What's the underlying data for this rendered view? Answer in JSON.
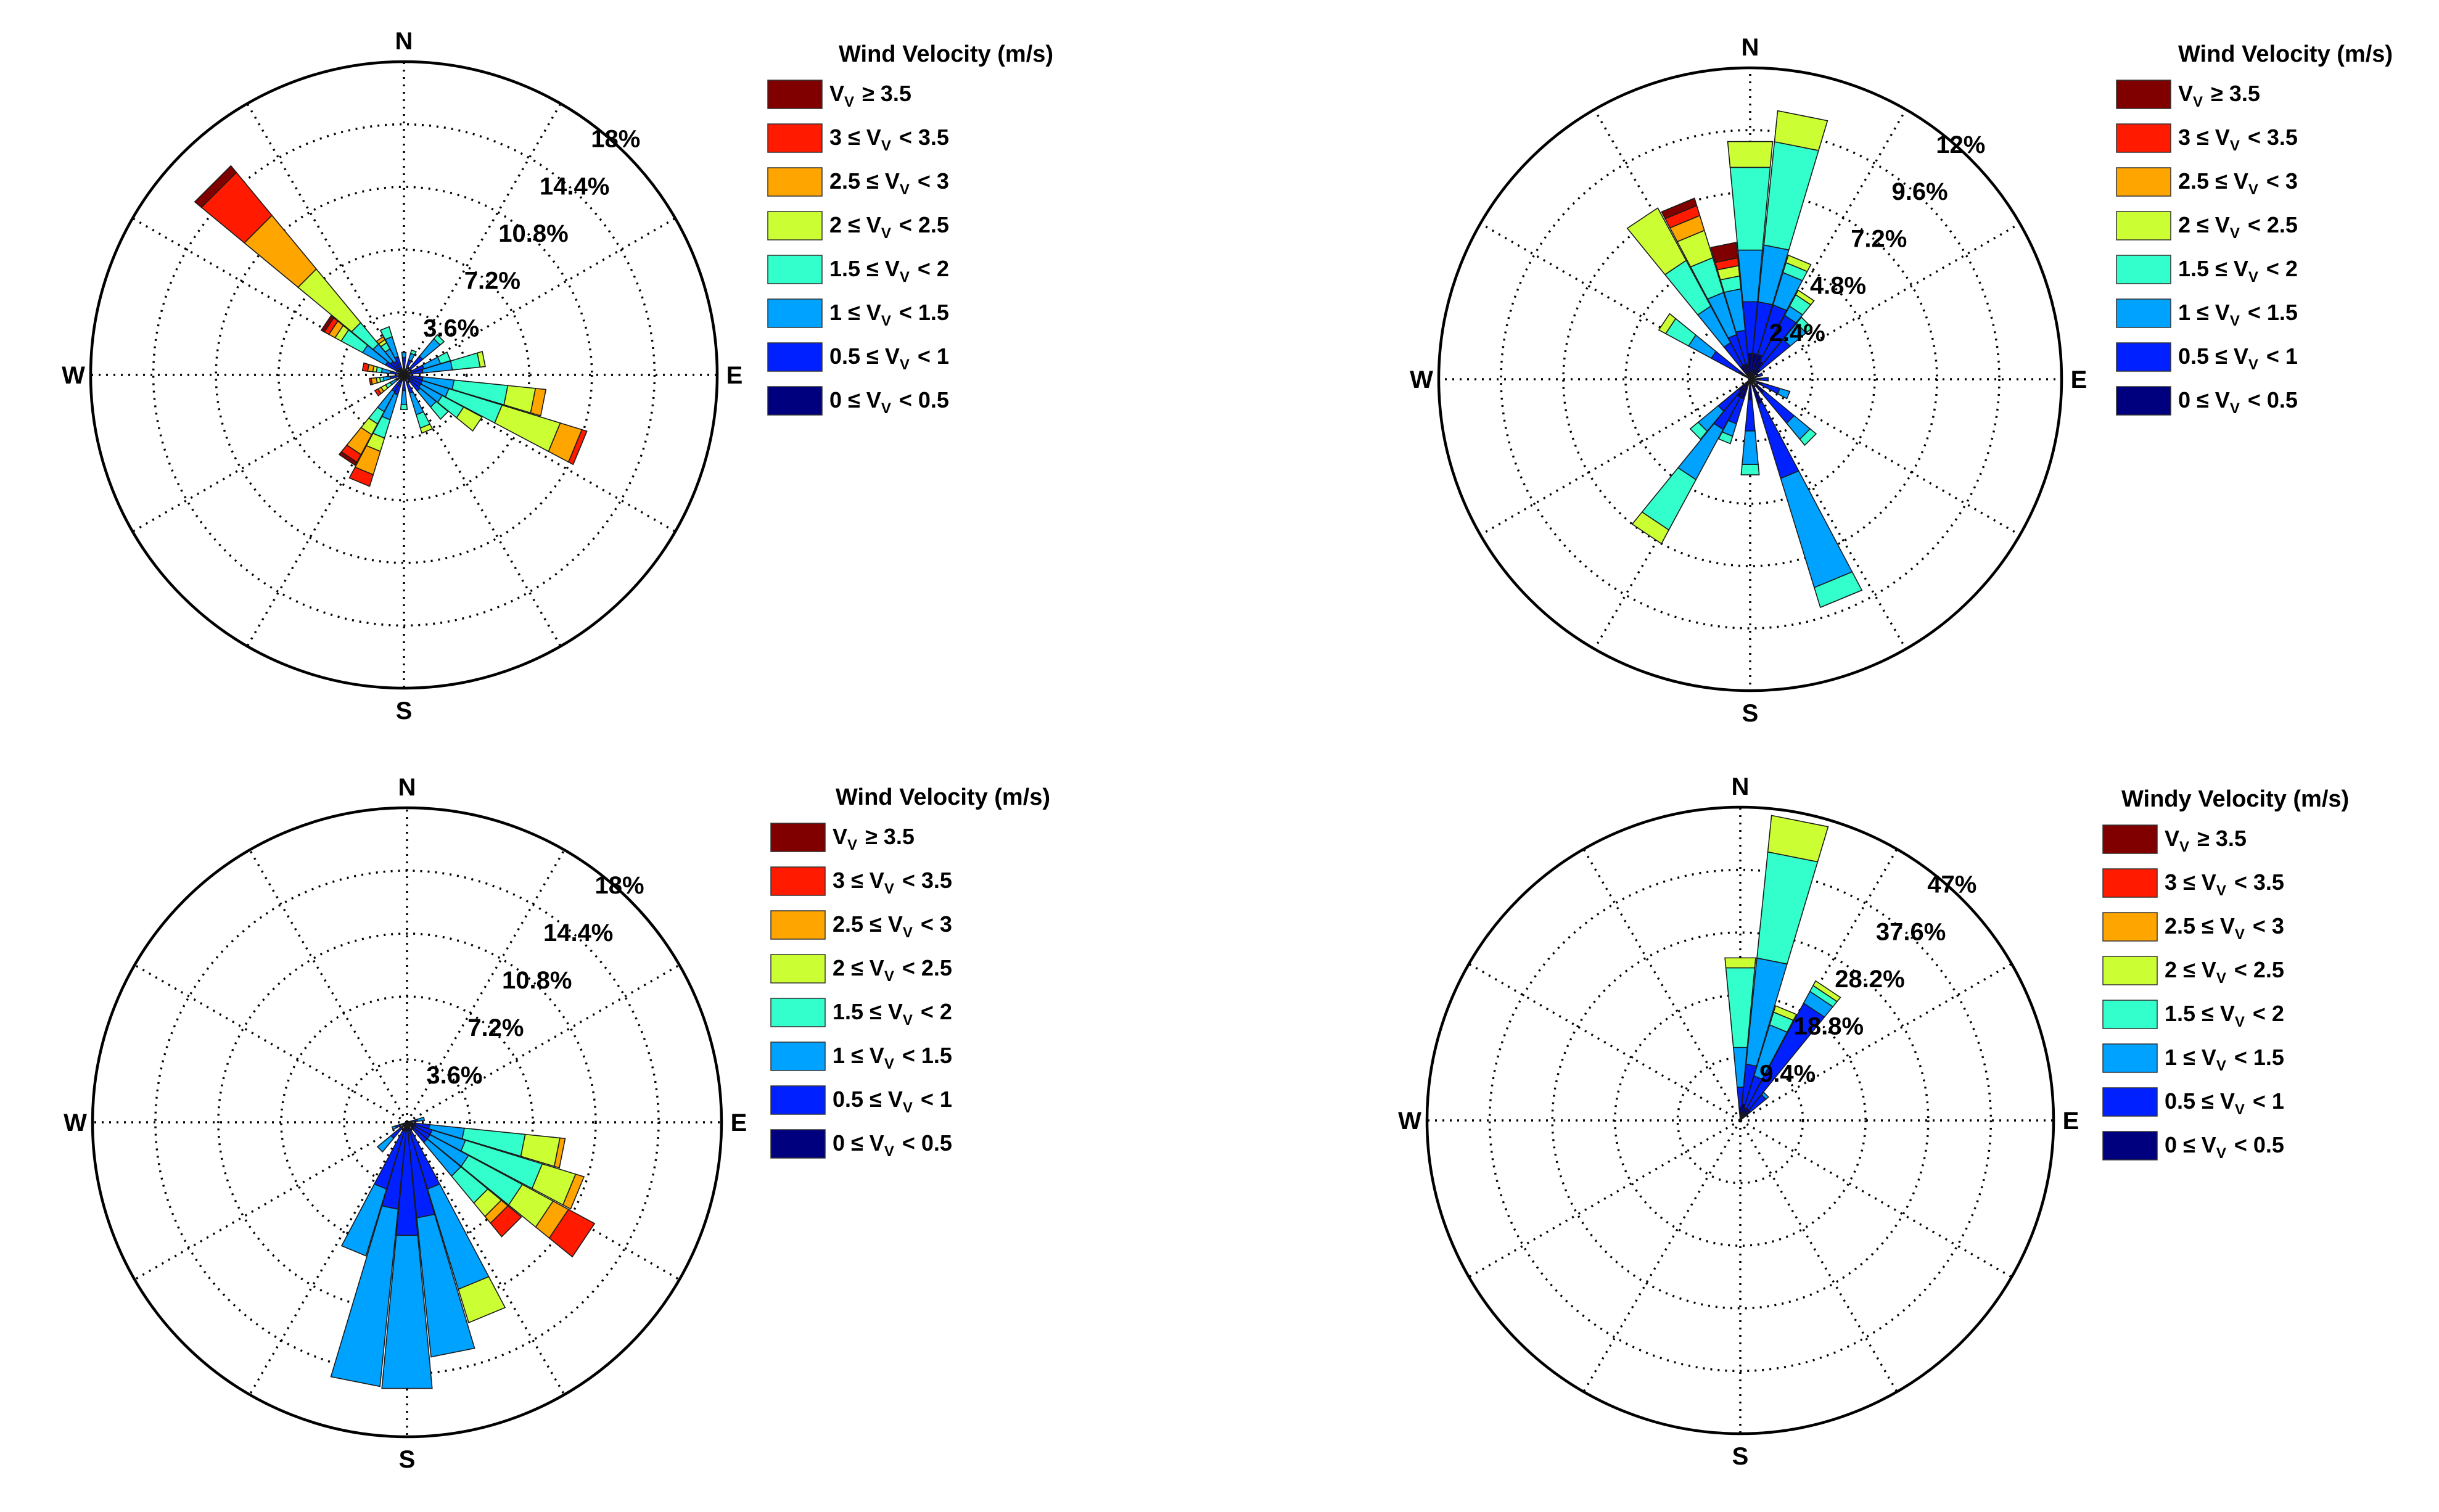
{
  "chart_data": [
    {
      "type": "windrose",
      "title": "",
      "legend_title": "Wind Velocity (m/s)",
      "legend_location": "right",
      "direction_labels": [
        "N",
        "E",
        "S",
        "W"
      ],
      "radial_axis": {
        "max": 18,
        "ticks": [
          3.6,
          7.2,
          10.8,
          14.4,
          18
        ],
        "tick_labels": [
          "3.6%",
          "7.2%",
          "10.8%",
          "14.4%",
          "18%"
        ]
      },
      "speed_bins": [
        {
          "name": "0 ≤ Vv < 0.5",
          "color": "#00007f"
        },
        {
          "name": "0.5 ≤ Vv < 1",
          "color": "#0020ff"
        },
        {
          "name": "1 ≤ Vv < 1.5",
          "color": "#00a2ff"
        },
        {
          "name": "1.5 ≤ Vv < 2",
          "color": "#33ffcc"
        },
        {
          "name": "2 ≤ Vv < 2.5",
          "color": "#ccff33"
        },
        {
          "name": "2.5 ≤ Vv < 3",
          "color": "#ffa500"
        },
        {
          "name": "3 ≤ Vv < 3.5",
          "color": "#ff1a00"
        },
        {
          "name": "Vv ≥ 3.5",
          "color": "#800000"
        }
      ],
      "sectors": [
        {
          "direction": 0,
          "values": [
            0.5,
            0.5,
            0.3,
            0,
            0,
            0,
            0,
            0
          ]
        },
        {
          "direction": 22.5,
          "values": [
            0.4,
            0.5,
            0.4,
            0.2,
            0,
            0,
            0,
            0
          ]
        },
        {
          "direction": 45,
          "values": [
            0.4,
            1.0,
            1.3,
            0.3,
            0,
            0,
            0,
            0
          ]
        },
        {
          "direction": 67.5,
          "values": [
            0.4,
            0.8,
            1.0,
            0.6,
            0,
            0,
            0,
            0
          ]
        },
        {
          "direction": 78.75,
          "values": [
            0.3,
            0.8,
            1.7,
            1.6,
            0.3,
            0,
            0,
            0
          ]
        },
        {
          "direction": 101.25,
          "values": [
            0.3,
            0.8,
            1.8,
            3.1,
            1.6,
            0.6,
            0,
            0
          ]
        },
        {
          "direction": 112.5,
          "values": [
            0.3,
            0.8,
            1.6,
            3.2,
            3.5,
            1.3,
            0.3,
            0
          ]
        },
        {
          "direction": 123.75,
          "values": [
            0.3,
            0.8,
            1.4,
            1.4,
            1.2,
            0,
            0,
            0
          ]
        },
        {
          "direction": 135,
          "values": [
            0.4,
            0.8,
            1.2,
            0.9,
            0,
            0,
            0,
            0
          ]
        },
        {
          "direction": 157.5,
          "values": [
            0.3,
            0.8,
            1.3,
            0.8,
            0.3,
            0,
            0,
            0
          ]
        },
        {
          "direction": 180,
          "values": [
            0.3,
            0.6,
            0.8,
            0.3,
            0,
            0,
            0,
            0
          ]
        },
        {
          "direction": 202.5,
          "values": [
            0.4,
            0.8,
            1.5,
            1.1,
            0.8,
            1.4,
            0.7,
            0
          ]
        },
        {
          "direction": 213.75,
          "values": [
            0.3,
            0.8,
            1.3,
            0.8,
            0.7,
            1.3,
            0.5,
            0.2
          ]
        },
        {
          "direction": 236.25,
          "values": [
            0.2,
            0.3,
            0.4,
            0.3,
            0.3,
            0.2,
            0.2,
            0
          ]
        },
        {
          "direction": 258.75,
          "values": [
            0.3,
            0.5,
            0.4,
            0.2,
            0.2,
            0.3,
            0.1,
            0
          ]
        },
        {
          "direction": 281.25,
          "values": [
            0.3,
            0.5,
            0.5,
            0.3,
            0.2,
            0.3,
            0.3,
            0
          ]
        },
        {
          "direction": 303.75,
          "values": [
            0.4,
            0.8,
            1.5,
            1.4,
            0.4,
            0.4,
            0.3,
            0.2
          ]
        },
        {
          "direction": 315,
          "values": [
            0.3,
            0.7,
            1.3,
            1.6,
            4.0,
            4.0,
            3.2,
            0.5
          ]
        },
        {
          "direction": 326.25,
          "values": [
            0.3,
            0.6,
            0.8,
            0.4,
            0.2,
            0.2,
            0,
            0
          ]
        },
        {
          "direction": 337.5,
          "values": [
            0.4,
            0.7,
            1.2,
            0.6,
            0,
            0,
            0,
            0
          ]
        }
      ]
    },
    {
      "type": "windrose",
      "title": "",
      "legend_title": "Wind Velocity (m/s)",
      "legend_location": "right",
      "direction_labels": [
        "N",
        "E",
        "S",
        "W"
      ],
      "radial_axis": {
        "max": 12,
        "ticks": [
          2.4,
          4.8,
          7.2,
          9.6,
          12
        ],
        "tick_labels": [
          "2.4%",
          "4.8%",
          "7.2%",
          "9.6%",
          "12%"
        ]
      },
      "speed_bins": [
        {
          "name": "0 ≤ Vv < 0.5",
          "color": "#00007f"
        },
        {
          "name": "0.5 ≤ Vv < 1",
          "color": "#0020ff"
        },
        {
          "name": "1 ≤ Vv < 1.5",
          "color": "#00a2ff"
        },
        {
          "name": "1.5 ≤ Vv < 2",
          "color": "#33ffcc"
        },
        {
          "name": "2 ≤ Vv < 2.5",
          "color": "#ccff33"
        },
        {
          "name": "2.5 ≤ Vv < 3",
          "color": "#ffa500"
        },
        {
          "name": "3 ≤ Vv < 3.5",
          "color": "#ff1a00"
        },
        {
          "name": "Vv ≥ 3.5",
          "color": "#800000"
        }
      ],
      "sectors": [
        {
          "direction": 0,
          "values": [
            1.0,
            2.0,
            2.0,
            3.2,
            1.0,
            0,
            0,
            0
          ]
        },
        {
          "direction": 11.25,
          "values": [
            1.0,
            2.0,
            2.2,
            4.0,
            1.2,
            0,
            0,
            0
          ]
        },
        {
          "direction": 22.5,
          "values": [
            1.0,
            2.0,
            1.3,
            0.4,
            0.3,
            0,
            0,
            0
          ]
        },
        {
          "direction": 33.75,
          "values": [
            0.8,
            2.0,
            0.4,
            0.5,
            0.2,
            0,
            0,
            0
          ]
        },
        {
          "direction": 45,
          "values": [
            0.5,
            1.5,
            0.8,
            0.3,
            0,
            0,
            0,
            0
          ]
        },
        {
          "direction": 67.5,
          "values": [
            0.3,
            0.2,
            0,
            0,
            0,
            0,
            0,
            0
          ]
        },
        {
          "direction": 90,
          "values": [
            0.4,
            0.3,
            0,
            0,
            0,
            0,
            0,
            0
          ]
        },
        {
          "direction": 112.5,
          "values": [
            0.5,
            0.7,
            0.4,
            0,
            0,
            0,
            0,
            0
          ]
        },
        {
          "direction": 135,
          "values": [
            0.7,
            1.5,
            0.8,
            0.3,
            0,
            0,
            0,
            0
          ]
        },
        {
          "direction": 157.5,
          "values": [
            1.0,
            3.0,
            4.4,
            0.8,
            0,
            0,
            0,
            0
          ]
        },
        {
          "direction": 180,
          "values": [
            0.8,
            1.2,
            1.3,
            0.4,
            0,
            0,
            0,
            0
          ]
        },
        {
          "direction": 202.5,
          "values": [
            0.8,
            1.0,
            0.5,
            0.3,
            0,
            0,
            0,
            0
          ]
        },
        {
          "direction": 213.75,
          "values": [
            0.8,
            1.4,
            2.2,
            2.2,
            0.6,
            0,
            0,
            0
          ]
        },
        {
          "direction": 225,
          "values": [
            0.6,
            1.0,
            1.0,
            0.4,
            0,
            0,
            0,
            0
          ]
        },
        {
          "direction": 303.75,
          "values": [
            0.5,
            1.2,
            1.0,
            1.0,
            0.3,
            0,
            0,
            0
          ]
        },
        {
          "direction": 326.25,
          "values": [
            0.6,
            1.0,
            1.6,
            2.0,
            2.3,
            0,
            0,
            0
          ]
        },
        {
          "direction": 337.5,
          "values": [
            0.6,
            1.2,
            1.7,
            1.4,
            1.1,
            0.6,
            0.4,
            0.3
          ]
        },
        {
          "direction": 348.75,
          "values": [
            0.6,
            1.3,
            1.6,
            0.5,
            0.4,
            0,
            0.3,
            0.6
          ]
        }
      ]
    },
    {
      "type": "windrose",
      "title": "",
      "legend_title": "Wind Velocity (m/s)",
      "legend_location": "right",
      "direction_labels": [
        "N",
        "E",
        "S",
        "W"
      ],
      "radial_axis": {
        "max": 18,
        "ticks": [
          3.6,
          7.2,
          10.8,
          14.4,
          18
        ],
        "tick_labels": [
          "3.6%",
          "7.2%",
          "10.8%",
          "14.4%",
          "18%"
        ]
      },
      "speed_bins": [
        {
          "name": "0 ≤ Vv < 0.5",
          "color": "#00007f"
        },
        {
          "name": "0.5 ≤ Vv < 1",
          "color": "#0020ff"
        },
        {
          "name": "1 ≤ Vv < 1.5",
          "color": "#00a2ff"
        },
        {
          "name": "1.5 ≤ Vv < 2",
          "color": "#33ffcc"
        },
        {
          "name": "2 ≤ Vv < 2.5",
          "color": "#ccff33"
        },
        {
          "name": "2.5 ≤ Vv < 3",
          "color": "#ffa500"
        },
        {
          "name": "3 ≤ Vv < 3.5",
          "color": "#ff1a00"
        },
        {
          "name": "Vv ≥ 3.5",
          "color": "#800000"
        }
      ],
      "sectors": [
        {
          "direction": 78.75,
          "values": [
            0.3,
            0.3,
            0.4,
            0,
            0,
            0,
            0,
            0
          ]
        },
        {
          "direction": 101.25,
          "values": [
            0.5,
            0.8,
            2.0,
            3.5,
            2.0,
            0.3,
            0,
            0
          ]
        },
        {
          "direction": 112.5,
          "values": [
            0.5,
            1.0,
            2.0,
            4.6,
            2.0,
            0.5,
            0,
            0
          ]
        },
        {
          "direction": 123.75,
          "values": [
            0.5,
            1.0,
            2.5,
            3.5,
            2.0,
            1.0,
            1.7,
            0
          ]
        },
        {
          "direction": 135,
          "values": [
            0.5,
            1.0,
            2.5,
            2.0,
            1.0,
            0.5,
            1.0,
            0
          ]
        },
        {
          "direction": 157.5,
          "values": [
            0.5,
            3.5,
            6.0,
            0,
            2.0,
            0,
            0,
            0
          ]
        },
        {
          "direction": 168.75,
          "values": [
            0.5,
            5.0,
            8.0,
            0,
            0,
            0,
            0,
            0
          ]
        },
        {
          "direction": 180,
          "values": [
            0.5,
            6.0,
            8.8,
            0,
            0,
            0,
            0,
            0
          ]
        },
        {
          "direction": 191.25,
          "values": [
            0.5,
            4.5,
            10.2,
            0,
            0,
            0,
            0,
            0
          ]
        },
        {
          "direction": 202.5,
          "values": [
            0.5,
            3.5,
            4.0,
            0,
            0,
            0,
            0,
            0
          ]
        },
        {
          "direction": 225,
          "values": [
            0.4,
            0.8,
            1.0,
            0,
            0,
            0,
            0,
            0
          ]
        },
        {
          "direction": 247.5,
          "values": [
            0.3,
            0.4,
            0.2,
            0,
            0,
            0,
            0,
            0
          ]
        }
      ]
    },
    {
      "type": "windrose",
      "title": "",
      "legend_title": "Windy Velocity (m/s)",
      "legend_location": "right",
      "direction_labels": [
        "N",
        "E",
        "S",
        "W"
      ],
      "radial_axis": {
        "max": 47,
        "ticks": [
          9.4,
          18.8,
          28.2,
          37.6,
          47
        ],
        "tick_labels": [
          "9.4%",
          "18.8%",
          "28.2%",
          "37.6%",
          "47%"
        ]
      },
      "speed_bins": [
        {
          "name": "0 ≤ Vv < 0.5",
          "color": "#00007f"
        },
        {
          "name": "0.5 ≤ Vv < 1",
          "color": "#0020ff"
        },
        {
          "name": "1 ≤ Vv < 1.5",
          "color": "#00a2ff"
        },
        {
          "name": "1.5 ≤ Vv < 2",
          "color": "#33ffcc"
        },
        {
          "name": "2 ≤ Vv < 2.5",
          "color": "#ccff33"
        },
        {
          "name": "2.5 ≤ Vv < 3",
          "color": "#ffa500"
        },
        {
          "name": "3 ≤ Vv < 3.5",
          "color": "#ff1a00"
        },
        {
          "name": "Vv ≥ 3.5",
          "color": "#800000"
        }
      ],
      "sectors": [
        {
          "direction": 0,
          "values": [
            2.0,
            3.0,
            6.0,
            12.0,
            1.5,
            0,
            0,
            0
          ]
        },
        {
          "direction": 11.25,
          "values": [
            2.5,
            6.0,
            16.0,
            16.0,
            5.5,
            0,
            0,
            0
          ]
        },
        {
          "direction": 22.5,
          "values": [
            2.0,
            5.0,
            8.0,
            2.0,
            1.0,
            0,
            0,
            0
          ]
        },
        {
          "direction": 33.75,
          "values": [
            2.0,
            18.0,
            2.0,
            1.0,
            0.8,
            0,
            0,
            0
          ]
        },
        {
          "direction": 45,
          "values": [
            2.0,
            3.0,
            0.5,
            0,
            0,
            0,
            0,
            0
          ]
        }
      ]
    }
  ]
}
